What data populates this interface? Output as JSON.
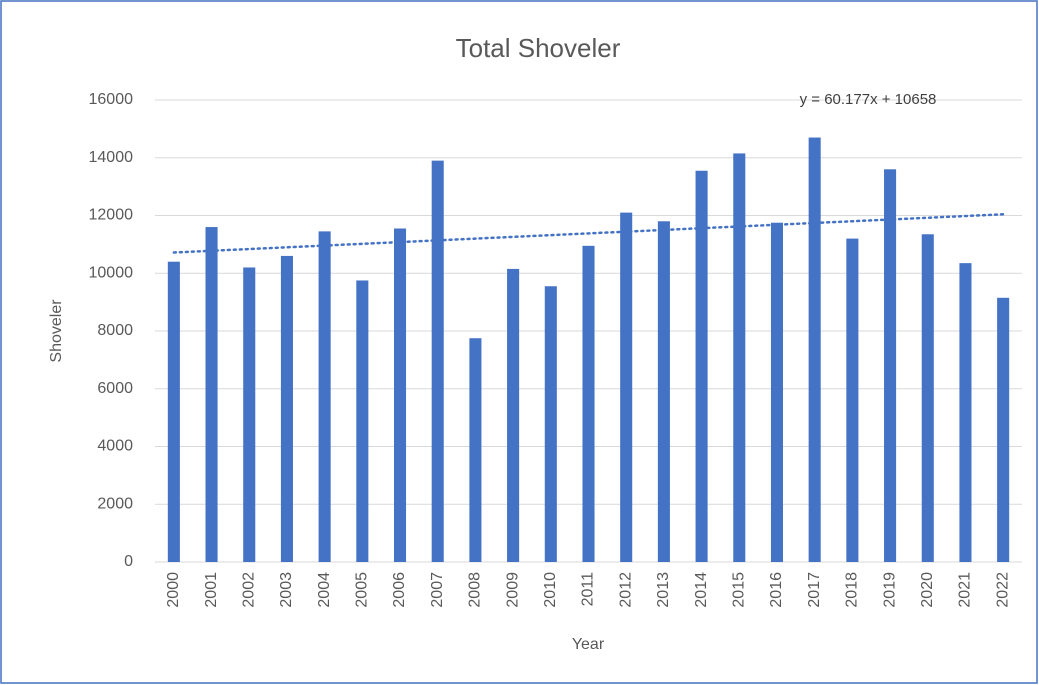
{
  "chart_data": {
    "type": "bar",
    "title": "Total Shoveler",
    "x_label": "Year",
    "y_label": "Shoveler",
    "categories": [
      "2000",
      "2001",
      "2002",
      "2003",
      "2004",
      "2005",
      "2006",
      "2007",
      "2008",
      "2009",
      "2010",
      "2011",
      "2012",
      "2013",
      "2014",
      "2015",
      "2016",
      "2017",
      "2018",
      "2019",
      "2020",
      "2021",
      "2022"
    ],
    "values": [
      10400,
      11600,
      10200,
      10600,
      11450,
      9750,
      11550,
      13900,
      7750,
      10150,
      9550,
      10950,
      12100,
      11800,
      13550,
      14150,
      11750,
      14700,
      11200,
      13600,
      11350,
      10350,
      9150
    ],
    "color": "#4472c4",
    "ylim": [
      0,
      16000
    ],
    "yticks": [
      0,
      2000,
      4000,
      6000,
      8000,
      10000,
      12000,
      14000,
      16000
    ],
    "grid": true,
    "trendline": {
      "label": "y = 60.177x + 10658",
      "slope": 60.177,
      "intercept": 10658,
      "color": "#4472c4"
    }
  }
}
